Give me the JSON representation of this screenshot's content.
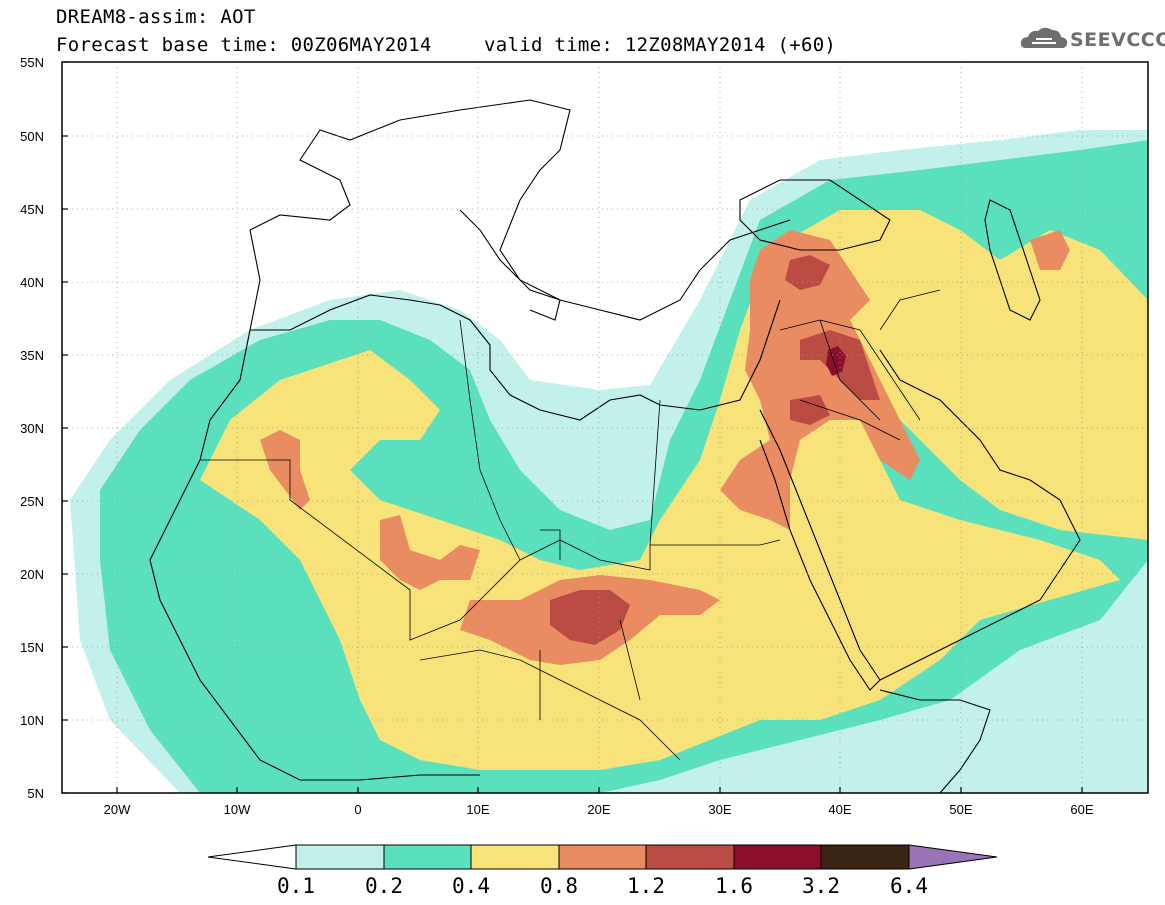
{
  "header": {
    "title": "DREAM8-assim: AOT",
    "base_time": "Forecast base time: 00Z06MAY2014",
    "valid_time": "valid time: 12Z08MAY2014 (+60)",
    "logo_text": "SEEVCCC"
  },
  "map": {
    "projection": "latitude-longitude",
    "lon_range": [
      -25,
      65
    ],
    "lat_range": [
      5,
      55
    ],
    "lat_ticks": [
      "5N",
      "10N",
      "15N",
      "20N",
      "25N",
      "30N",
      "35N",
      "40N",
      "45N",
      "50N",
      "55N"
    ],
    "lon_ticks": [
      "20W",
      "10W",
      "0",
      "10E",
      "20E",
      "30E",
      "40E",
      "50E",
      "60E"
    ],
    "field": "AOT",
    "max_region": "Syria/Iraq near 34N 39E"
  },
  "legend": {
    "labels": [
      "0.1",
      "0.2",
      "0.4",
      "0.8",
      "1.2",
      "1.6",
      "3.2",
      "6.4"
    ],
    "colors": [
      "#c2f0ea",
      "#5be0bd",
      "#f8e37b",
      "#e98c62",
      "#bb4c44",
      "#8b0f2b",
      "#3a2515",
      "#9974b8"
    ]
  },
  "colors": {
    "c1": "#c2f0ea",
    "c2": "#5be0bd",
    "c3": "#f8e37b",
    "c4": "#e98c62",
    "c5": "#bb4c44",
    "c6": "#8b0f2b"
  }
}
